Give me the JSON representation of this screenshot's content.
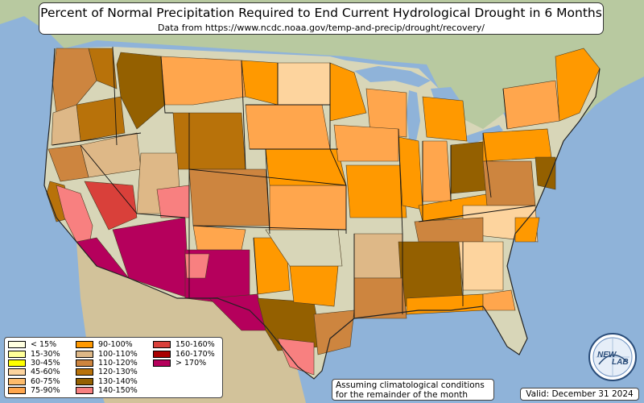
{
  "title": "Percent of Normal Precipitation Required to End Current Hydrological Drought in 6 Months",
  "subtitle": "Data from https://www.ncdc.noaa.gov/temp-and-precip/drought/recovery/",
  "legend": [
    {
      "label": "< 15%",
      "color": "#ffffe0"
    },
    {
      "label": "15-30%",
      "color": "#ffff99"
    },
    {
      "label": "30-45%",
      "color": "#ffff00"
    },
    {
      "label": "45-60%",
      "color": "#fdd49e"
    },
    {
      "label": "60-75%",
      "color": "#fdbb6b"
    },
    {
      "label": "75-90%",
      "color": "#ffa64d"
    },
    {
      "label": "90-100%",
      "color": "#ff9900"
    },
    {
      "label": "100-110%",
      "color": "#deb887"
    },
    {
      "label": "110-120%",
      "color": "#cd853f"
    },
    {
      "label": "120-130%",
      "color": "#b8720a"
    },
    {
      "label": "130-140%",
      "color": "#946000"
    },
    {
      "label": "140-150%",
      "color": "#f88080"
    },
    {
      "label": "150-160%",
      "color": "#d9403a"
    },
    {
      "label": "160-170%",
      "color": "#a80000"
    },
    {
      "label": "> 170%",
      "color": "#b5005c"
    }
  ],
  "note": {
    "line1": "Assuming climatological conditions",
    "line2": "for the remainder of the month"
  },
  "valid": "Valid: December 31 2024",
  "logo": {
    "text_top": "NEW",
    "text_bottom": "LAB"
  }
}
